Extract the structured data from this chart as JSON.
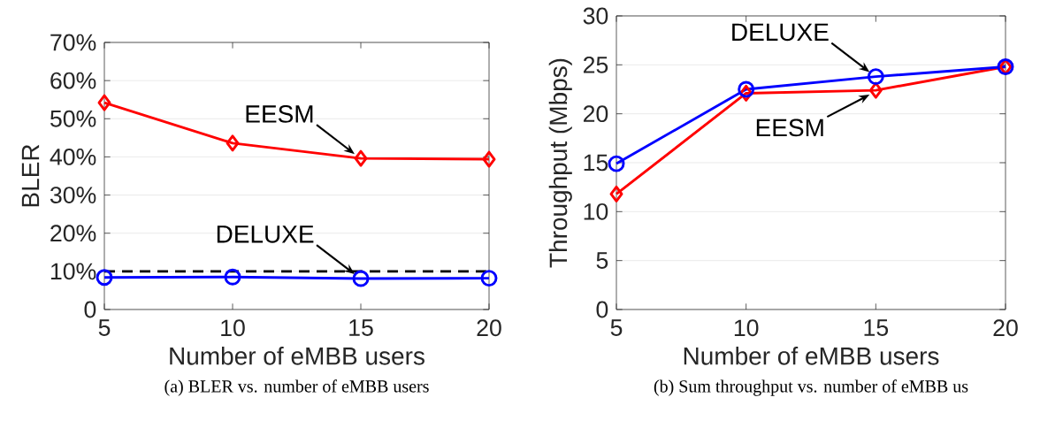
{
  "chart_data": [
    {
      "type": "line",
      "title": "(a) BLER vs. number of eMBB users",
      "xlabel": "Number of eMBB users",
      "ylabel": "BLER",
      "x": [
        5,
        10,
        15,
        20
      ],
      "xlim": [
        5,
        20
      ],
      "xticks": [
        5,
        10,
        15,
        20
      ],
      "ylim": [
        0,
        70
      ],
      "yticks": [
        0,
        {
          "value": 10,
          "label": "10%"
        },
        {
          "value": 20,
          "label": "20%"
        },
        {
          "value": 30,
          "label": "30%"
        },
        {
          "value": 40,
          "label": "40%"
        },
        {
          "value": 50,
          "label": "50%"
        },
        {
          "value": 60,
          "label": "60%"
        },
        {
          "value": 70,
          "label": "70%"
        }
      ],
      "grid": "y",
      "series": [
        {
          "name": "EESM",
          "color": "#ff0000",
          "marker": "diamond",
          "line_style": "solid",
          "values": [
            54.2,
            43.6,
            39.6,
            39.4
          ]
        },
        {
          "name": "DELUXE",
          "color": "#0000ff",
          "marker": "circle",
          "line_style": "solid",
          "values": [
            8.4,
            8.5,
            8.1,
            8.2
          ]
        }
      ],
      "ref_lines": [
        {
          "axis": "y",
          "value": 10,
          "color": "#000000",
          "line_style": "dashed"
        }
      ]
    },
    {
      "type": "line",
      "title": "(b) Sum throughput vs. number of eMBB us",
      "xlabel": "Number of eMBB users",
      "ylabel": "Throughput (Mbps)",
      "x": [
        5,
        10,
        15,
        20
      ],
      "xlim": [
        5,
        20
      ],
      "xticks": [
        5,
        10,
        15,
        20
      ],
      "ylim": [
        0,
        30
      ],
      "yticks": [
        0,
        5,
        10,
        15,
        20,
        25,
        30
      ],
      "grid": "y",
      "series": [
        {
          "name": "EESM",
          "color": "#ff0000",
          "marker": "diamond",
          "line_style": "solid",
          "values": [
            11.8,
            22.1,
            22.4,
            24.8
          ]
        },
        {
          "name": "DELUXE",
          "color": "#0000ff",
          "marker": "circle",
          "line_style": "solid",
          "values": [
            14.9,
            22.5,
            23.8,
            24.8
          ]
        }
      ]
    }
  ]
}
